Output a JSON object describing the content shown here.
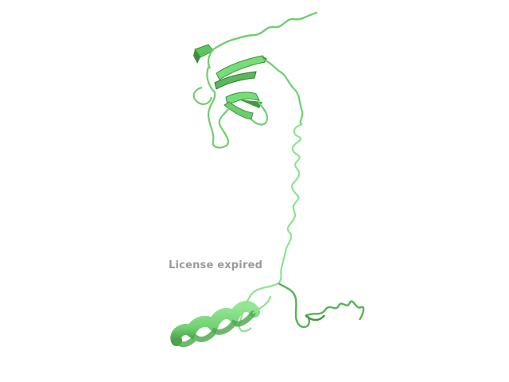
{
  "viewer": {
    "background_color": "#ffffff",
    "cartoon_color": "#77dd77",
    "cartoon_shadow": "#4aa64a",
    "watermark_text": "License expired",
    "watermark_color": "#9a9a9a"
  }
}
